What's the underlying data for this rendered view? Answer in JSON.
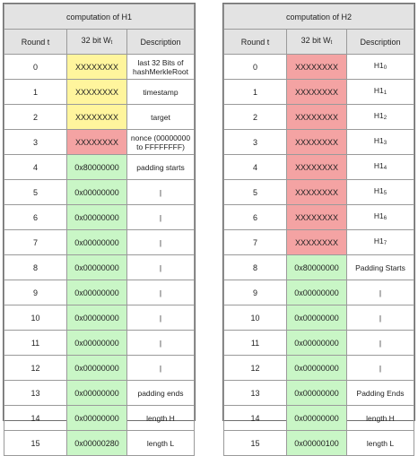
{
  "left": {
    "title": "computation of H1",
    "headers": {
      "round": "Round t",
      "word_prefix": "32 bit W",
      "word_sub": "t",
      "description": "Description"
    },
    "rows": [
      {
        "round": "0",
        "word": "XXXXXXXX",
        "color": "yellow",
        "desc_parts": [
          "last 32 Bits of",
          "hashMerkleRoot"
        ]
      },
      {
        "round": "1",
        "word": "XXXXXXXX",
        "color": "yellow",
        "desc_parts": [
          "timestamp"
        ]
      },
      {
        "round": "2",
        "word": "XXXXXXXX",
        "color": "yellow",
        "desc_parts": [
          "target"
        ]
      },
      {
        "round": "3",
        "word": "XXXXXXXX",
        "color": "red",
        "desc_parts": [
          "nonce (00000000",
          "to FFFFFFFF)"
        ]
      },
      {
        "round": "4",
        "word": "0x80000000",
        "color": "green",
        "desc_parts": [
          "padding starts"
        ]
      },
      {
        "round": "5",
        "word": "0x00000000",
        "color": "green",
        "desc_parts": [
          "|"
        ]
      },
      {
        "round": "6",
        "word": "0x00000000",
        "color": "green",
        "desc_parts": [
          "|"
        ]
      },
      {
        "round": "7",
        "word": "0x00000000",
        "color": "green",
        "desc_parts": [
          "|"
        ]
      },
      {
        "round": "8",
        "word": "0x00000000",
        "color": "green",
        "desc_parts": [
          "|"
        ]
      },
      {
        "round": "9",
        "word": "0x00000000",
        "color": "green",
        "desc_parts": [
          "|"
        ]
      },
      {
        "round": "10",
        "word": "0x00000000",
        "color": "green",
        "desc_parts": [
          "|"
        ]
      },
      {
        "round": "11",
        "word": "0x00000000",
        "color": "green",
        "desc_parts": [
          "|"
        ]
      },
      {
        "round": "12",
        "word": "0x00000000",
        "color": "green",
        "desc_parts": [
          "|"
        ]
      },
      {
        "round": "13",
        "word": "0x00000000",
        "color": "green",
        "desc_parts": [
          "padding ends"
        ]
      },
      {
        "round": "14",
        "word": "0x00000000",
        "color": "green",
        "desc_parts": [
          "length H"
        ]
      },
      {
        "round": "15",
        "word": "0x00000280",
        "color": "green",
        "desc_parts": [
          "length L"
        ]
      }
    ]
  },
  "right": {
    "title": "computation of H2",
    "headers": {
      "round": "Round t",
      "word_prefix": "32 bit W",
      "word_sub": "t",
      "description": "Description"
    },
    "rows": [
      {
        "round": "0",
        "word": "XXXXXXXX",
        "color": "red",
        "desc": "H1",
        "sub": "0"
      },
      {
        "round": "1",
        "word": "XXXXXXXX",
        "color": "red",
        "desc": "H1",
        "sub": "1"
      },
      {
        "round": "2",
        "word": "XXXXXXXX",
        "color": "red",
        "desc": "H1",
        "sub": "2"
      },
      {
        "round": "3",
        "word": "XXXXXXXX",
        "color": "red",
        "desc": "H1",
        "sub": "3"
      },
      {
        "round": "4",
        "word": "XXXXXXXX",
        "color": "red",
        "desc": "H1",
        "sub": "4"
      },
      {
        "round": "5",
        "word": "XXXXXXXX",
        "color": "red",
        "desc": "H1",
        "sub": "5"
      },
      {
        "round": "6",
        "word": "XXXXXXXX",
        "color": "red",
        "desc": "H1",
        "sub": "6"
      },
      {
        "round": "7",
        "word": "XXXXXXXX",
        "color": "red",
        "desc": "H1",
        "sub": "7"
      },
      {
        "round": "8",
        "word": "0x80000000",
        "color": "green",
        "desc": "Padding Starts",
        "sub": ""
      },
      {
        "round": "9",
        "word": "0x00000000",
        "color": "green",
        "desc": "|",
        "sub": ""
      },
      {
        "round": "10",
        "word": "0x00000000",
        "color": "green",
        "desc": "|",
        "sub": ""
      },
      {
        "round": "11",
        "word": "0x00000000",
        "color": "green",
        "desc": "|",
        "sub": ""
      },
      {
        "round": "12",
        "word": "0x00000000",
        "color": "green",
        "desc": "|",
        "sub": ""
      },
      {
        "round": "13",
        "word": "0x00000000",
        "color": "green",
        "desc": "Padding Ends",
        "sub": ""
      },
      {
        "round": "14",
        "word": "0x00000000",
        "color": "green",
        "desc": "length H",
        "sub": ""
      },
      {
        "round": "15",
        "word": "0x00000100",
        "color": "green",
        "desc": "length L",
        "sub": ""
      }
    ]
  },
  "colors": {
    "yellow": "#fff59d",
    "red": "#f4a3a3",
    "green": "#c9f6c6",
    "header_bg": "#e3e3e3"
  }
}
